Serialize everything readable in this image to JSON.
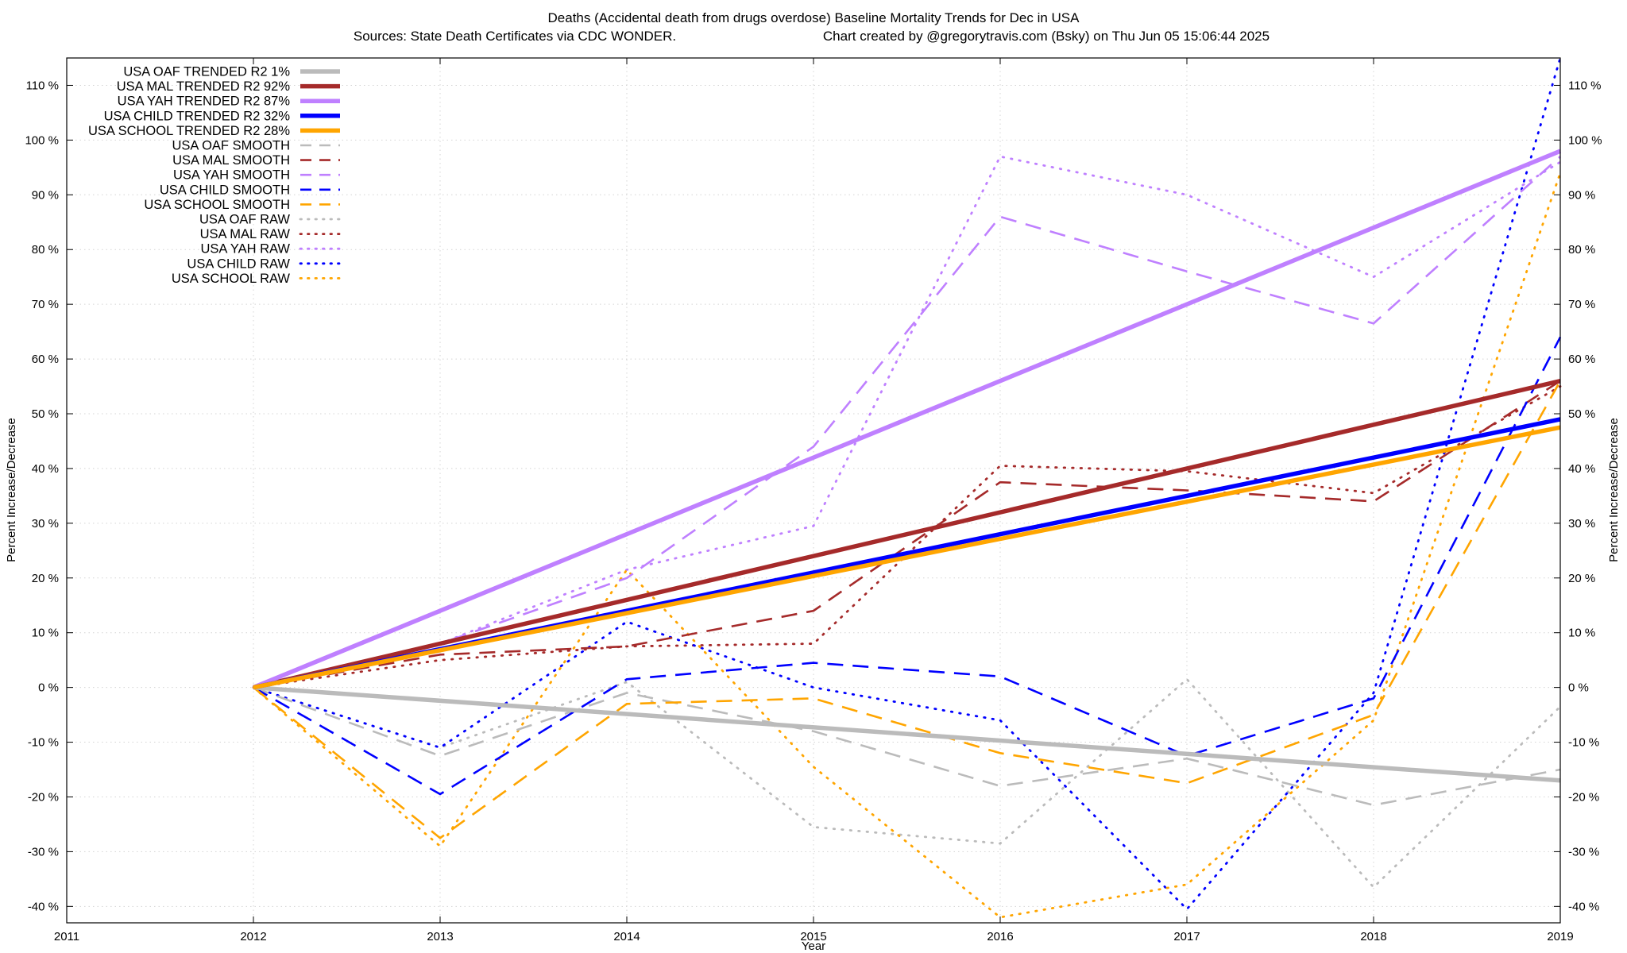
{
  "chart_data": {
    "type": "line",
    "title": "Deaths (Accidental death from drugs overdose)  Baseline Mortality Trends for Dec in USA",
    "subtitle_left": "Sources: State Death Certificates via CDC WONDER.",
    "subtitle_right": "Chart created by @gregorytravis.com (Bsky) on Thu Jun 05 15:06:44 2025",
    "xlabel": "Year",
    "ylabel_left": "Percent Increase/Decrease",
    "ylabel_right": "Percent Increase/Decrease",
    "xlim": [
      2011,
      2019
    ],
    "ylim": [
      -43,
      115
    ],
    "x_ticks": [
      2011,
      2012,
      2013,
      2014,
      2015,
      2016,
      2017,
      2018,
      2019
    ],
    "y_ticks": [
      -40,
      -30,
      -20,
      -10,
      0,
      10,
      20,
      30,
      40,
      50,
      60,
      70,
      80,
      90,
      100,
      110
    ],
    "y_tick_suffix": " %",
    "grid": true,
    "legend_position": "top-left",
    "colors": {
      "oaf": "#bbbbbb",
      "mal": "#a52a2a",
      "yah": "#bf80ff",
      "child": "#0000ff",
      "school": "#ffa500"
    },
    "series": [
      {
        "name": "USA OAF TRENDED R2   1%",
        "group": "oaf",
        "style": "trend",
        "x": [
          2012,
          2019
        ],
        "y": [
          0,
          -17
        ]
      },
      {
        "name": "USA MAL TRENDED R2  92%",
        "group": "mal",
        "style": "trend",
        "x": [
          2012,
          2019
        ],
        "y": [
          0,
          56
        ]
      },
      {
        "name": "USA YAH TRENDED R2  87%",
        "group": "yah",
        "style": "trend",
        "x": [
          2012,
          2019
        ],
        "y": [
          0,
          98
        ]
      },
      {
        "name": "USA CHILD TRENDED R2  32%",
        "group": "child",
        "style": "trend",
        "x": [
          2012,
          2019
        ],
        "y": [
          0,
          49
        ]
      },
      {
        "name": "USA SCHOOL TRENDED R2  28%",
        "group": "school",
        "style": "trend",
        "x": [
          2012,
          2019
        ],
        "y": [
          0,
          47.5
        ]
      },
      {
        "name": "USA OAF SMOOTH",
        "group": "oaf",
        "style": "smooth",
        "x": [
          2012,
          2013,
          2014,
          2015,
          2016,
          2017,
          2018,
          2019
        ],
        "y": [
          0,
          -12.5,
          -1,
          -8,
          -18,
          -13,
          -21.5,
          -15
        ]
      },
      {
        "name": "USA MAL SMOOTH",
        "group": "mal",
        "style": "smooth",
        "x": [
          2012,
          2013,
          2014,
          2015,
          2016,
          2017,
          2018,
          2019
        ],
        "y": [
          0,
          6,
          7.5,
          14,
          37.5,
          36,
          34,
          56
        ]
      },
      {
        "name": "USA YAH SMOOTH",
        "group": "yah",
        "style": "smooth",
        "x": [
          2012,
          2013,
          2014,
          2015,
          2016,
          2017,
          2018,
          2019
        ],
        "y": [
          0,
          8,
          20,
          44,
          86,
          76,
          66.5,
          97
        ]
      },
      {
        "name": "USA CHILD SMOOTH",
        "group": "child",
        "style": "smooth",
        "x": [
          2012,
          2013,
          2014,
          2015,
          2016,
          2017,
          2018,
          2019
        ],
        "y": [
          0,
          -19.5,
          1.5,
          4.5,
          2,
          -12.5,
          -2,
          64
        ]
      },
      {
        "name": "USA SCHOOL SMOOTH",
        "group": "school",
        "style": "smooth",
        "x": [
          2012,
          2013,
          2014,
          2015,
          2016,
          2017,
          2018,
          2019
        ],
        "y": [
          0,
          -27.5,
          -3,
          -2,
          -12,
          -17.5,
          -5,
          56
        ]
      },
      {
        "name": "USA OAF RAW",
        "group": "oaf",
        "style": "raw",
        "x": [
          2012,
          2013,
          2014,
          2015,
          2016,
          2017,
          2018,
          2019
        ],
        "y": [
          0,
          -11,
          1,
          -25.5,
          -28.5,
          1.5,
          -36.5,
          -3.5
        ]
      },
      {
        "name": "USA MAL RAW",
        "group": "mal",
        "style": "raw",
        "x": [
          2012,
          2013,
          2014,
          2015,
          2016,
          2017,
          2018,
          2019
        ],
        "y": [
          0,
          5,
          7.5,
          8,
          40.5,
          39.5,
          35.5,
          55
        ]
      },
      {
        "name": "USA YAH RAW",
        "group": "yah",
        "style": "raw",
        "x": [
          2012,
          2013,
          2014,
          2015,
          2016,
          2017,
          2018,
          2019
        ],
        "y": [
          0,
          8,
          21.5,
          29.5,
          97,
          90,
          75,
          96
        ]
      },
      {
        "name": "USA CHILD RAW",
        "group": "child",
        "style": "raw",
        "x": [
          2012,
          2013,
          2014,
          2015,
          2016,
          2017,
          2018,
          2019
        ],
        "y": [
          0,
          -11,
          12,
          0,
          -6,
          -40.5,
          -1,
          115
        ]
      },
      {
        "name": "USA SCHOOL RAW",
        "group": "school",
        "style": "raw",
        "x": [
          2012,
          2013,
          2014,
          2015,
          2016,
          2017,
          2018,
          2019
        ],
        "y": [
          0,
          -29,
          21.5,
          -14.5,
          -42,
          -36,
          -6,
          94
        ]
      }
    ]
  }
}
